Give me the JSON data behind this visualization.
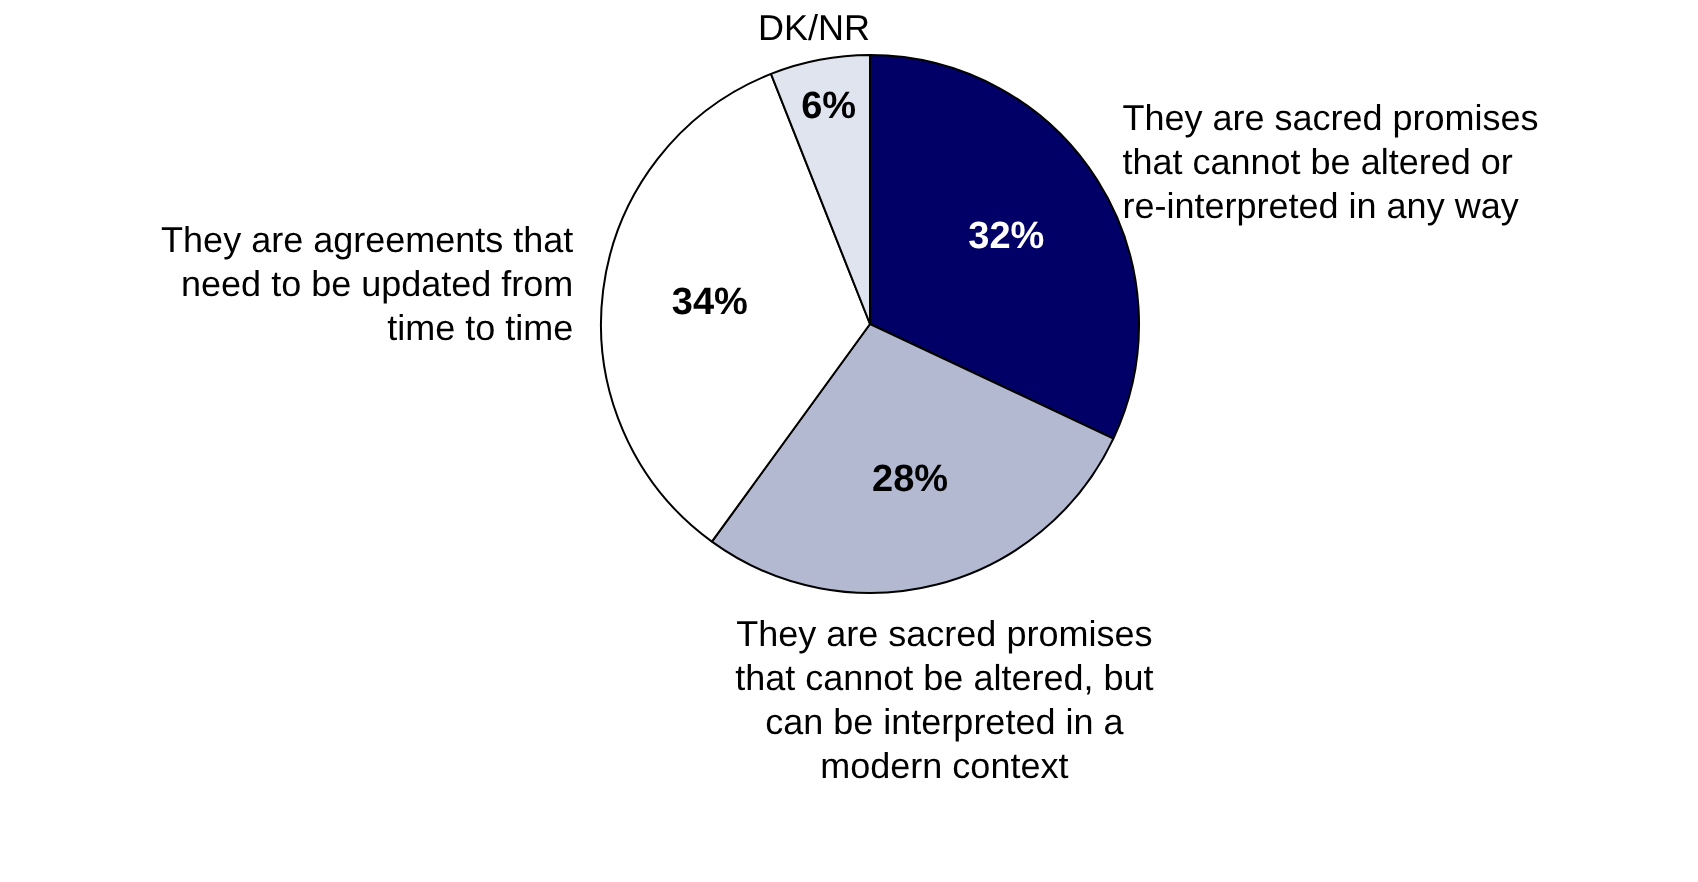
{
  "chart_data": {
    "type": "pie",
    "categories": [
      "They are sacred promises that cannot be altered or re-interpreted in any way",
      "They are sacred promises that cannot be altered, but can be interpreted in a modern context",
      "They are agreements that need to be updated from time to time",
      "DK/NR"
    ],
    "values": [
      32,
      28,
      34,
      6
    ],
    "value_labels": [
      "32%",
      "28%",
      "34%",
      "6%"
    ],
    "colors": [
      "#000066",
      "#b4b9d2",
      "#ffffff",
      "#dfe4ee"
    ],
    "legend": false
  }
}
